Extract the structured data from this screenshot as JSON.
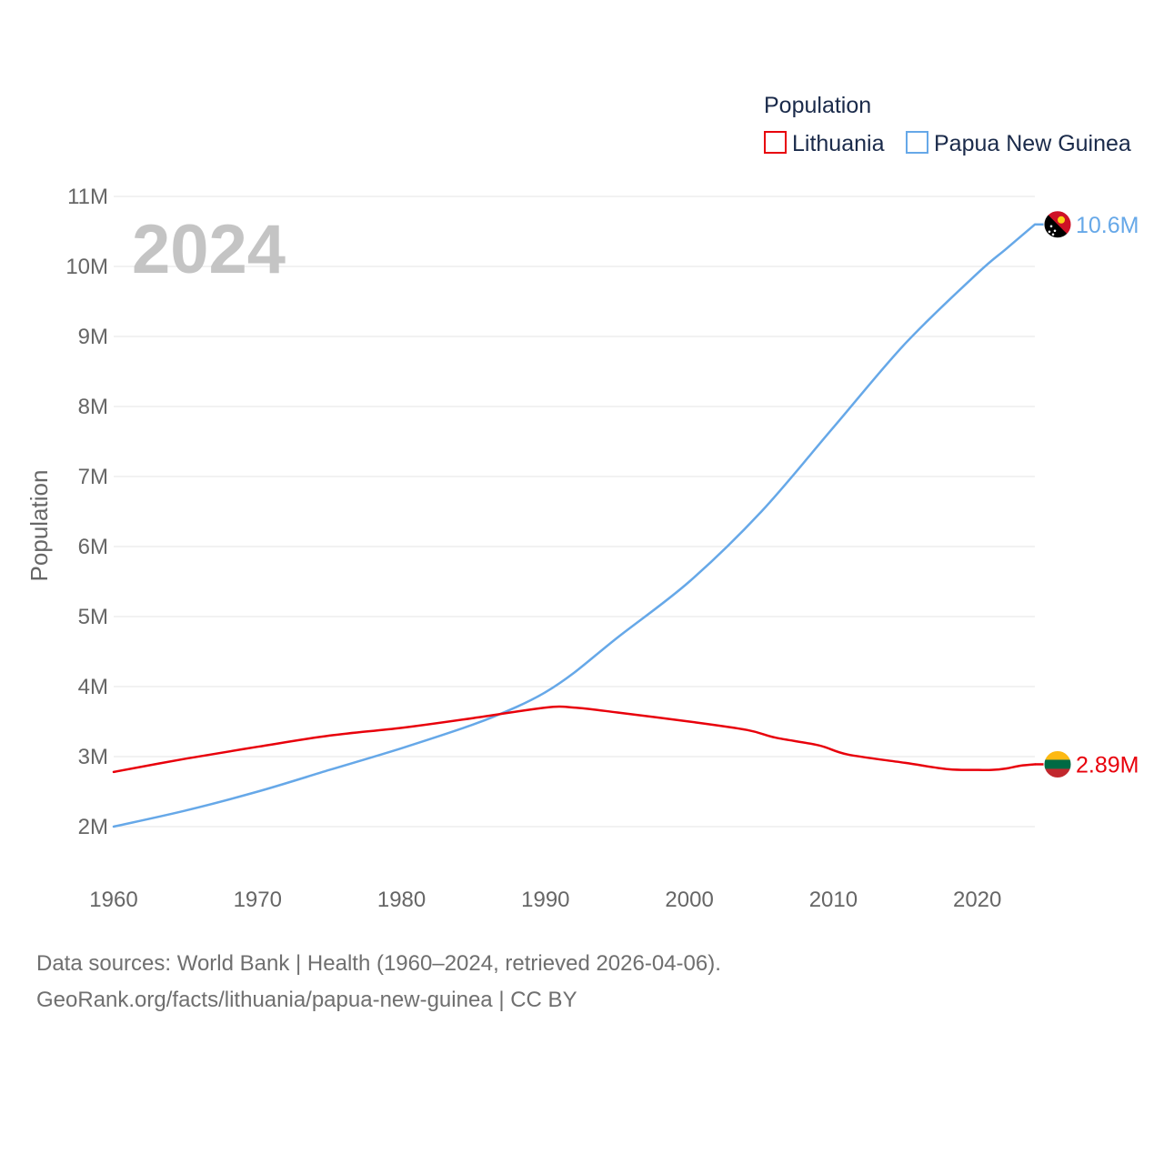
{
  "chart_data": {
    "type": "line",
    "title": "Population",
    "year_label": "2024",
    "ylabel": "Population",
    "xlabel": "",
    "xlim": [
      1960,
      2024
    ],
    "ylim": [
      2000000,
      11000000
    ],
    "x_ticks": [
      1960,
      1970,
      1980,
      1990,
      2000,
      2010,
      2020
    ],
    "y_ticks": [
      2000000,
      3000000,
      4000000,
      5000000,
      6000000,
      7000000,
      8000000,
      9000000,
      10000000,
      11000000
    ],
    "y_tick_labels": [
      "2M",
      "3M",
      "4M",
      "5M",
      "6M",
      "7M",
      "8M",
      "9M",
      "10M",
      "11M"
    ],
    "legend": {
      "title": "Population",
      "position": "top-right"
    },
    "series": [
      {
        "name": "Lithuania",
        "color": "#e8000b",
        "end_label": "2.89M",
        "flag_icon": "lithuania-flag-icon",
        "x": [
          1960,
          1965,
          1970,
          1975,
          1980,
          1985,
          1990,
          1992,
          1995,
          2000,
          2004,
          2006,
          2009,
          2011,
          2015,
          2018,
          2020,
          2021,
          2022,
          2023,
          2024
        ],
        "values": [
          2780000,
          2970000,
          3140000,
          3300000,
          3410000,
          3550000,
          3700000,
          3700000,
          3630000,
          3500000,
          3380000,
          3270000,
          3160000,
          3030000,
          2910000,
          2820000,
          2810000,
          2810000,
          2830000,
          2870000,
          2890000
        ]
      },
      {
        "name": "Papua New Guinea",
        "color": "#66a8e8",
        "end_label": "10.6M",
        "flag_icon": "papua-new-guinea-flag-icon",
        "x": [
          1960,
          1965,
          1970,
          1975,
          1980,
          1985,
          1988,
          1990,
          1992,
          1995,
          2000,
          2005,
          2010,
          2015,
          2020,
          2022,
          2024
        ],
        "values": [
          2000000,
          2230000,
          2500000,
          2810000,
          3120000,
          3460000,
          3710000,
          3920000,
          4200000,
          4700000,
          5500000,
          6500000,
          7700000,
          8900000,
          9900000,
          10250000,
          10600000
        ]
      }
    ]
  },
  "source": {
    "line1": "Data sources: World Bank | Health (1960–2024, retrieved 2026-04-06).",
    "line2": "GeoRank.org/facts/lithuania/papua-new-guinea | CC BY"
  }
}
